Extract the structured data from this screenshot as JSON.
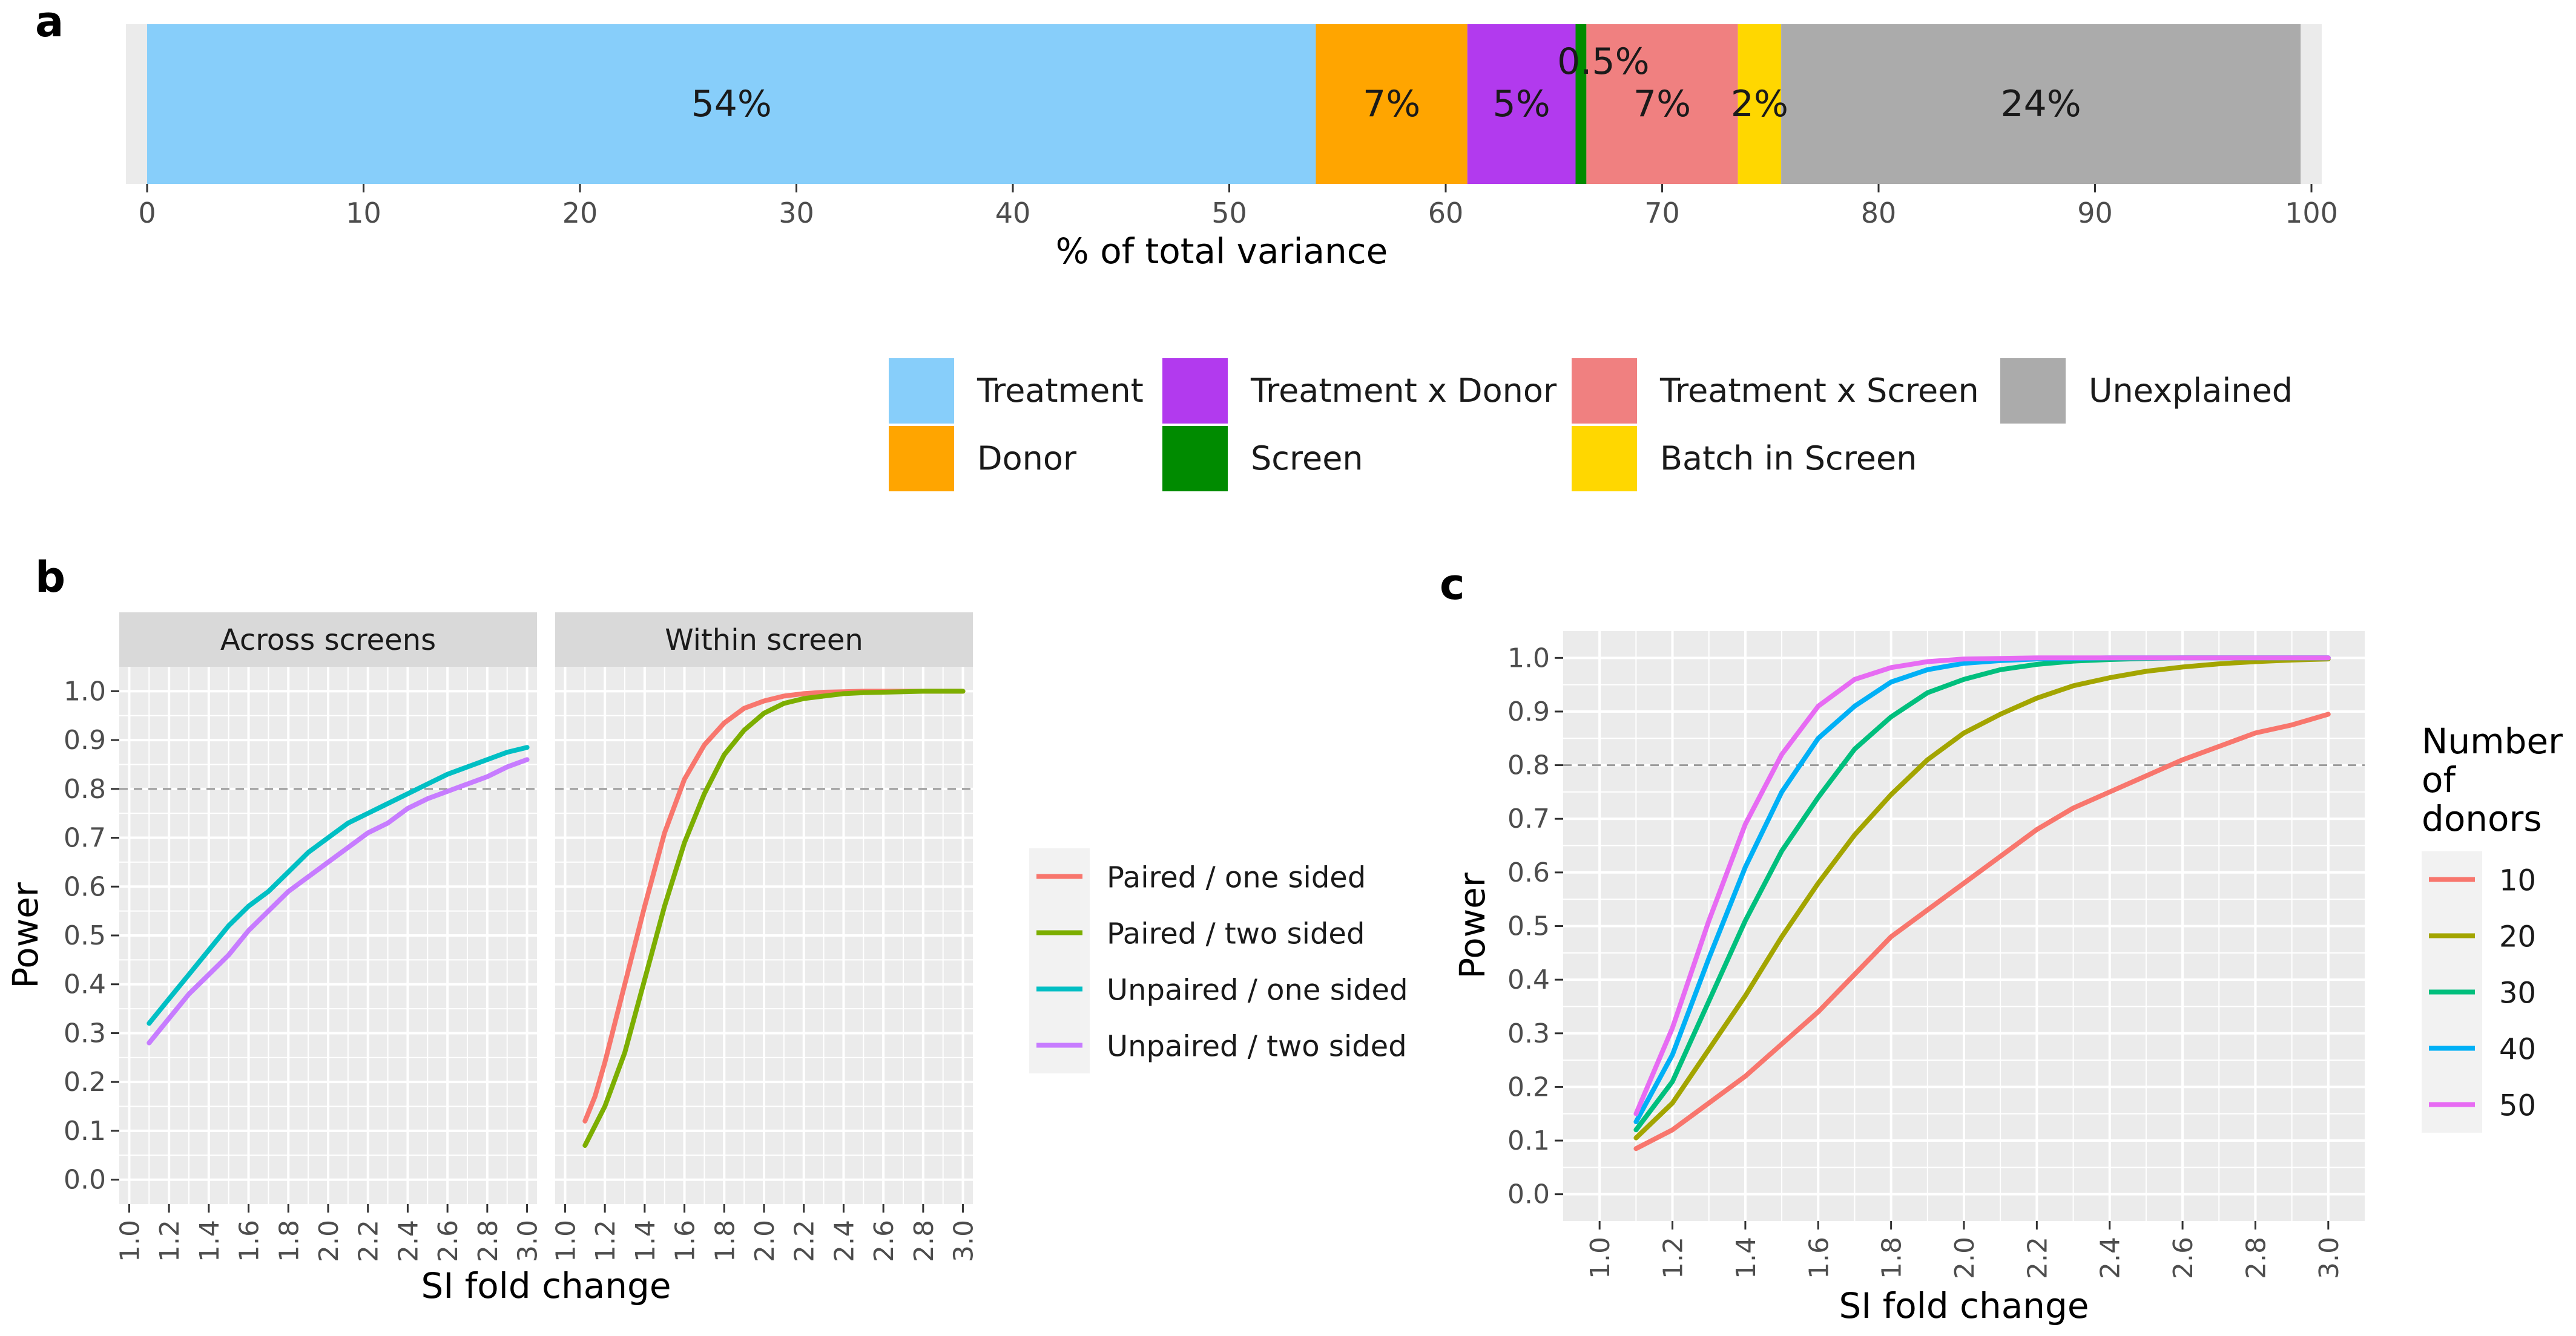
{
  "panel_labels": {
    "a": "a",
    "b": "b",
    "c": "c"
  },
  "colors": {
    "Treatment": "#87CEFA",
    "Donor": "#FFA500",
    "Treatment x Donor": "#B23AEE",
    "Screen": "#008B00",
    "Treatment x Screen": "#F08080",
    "Batch in Screen": "#FFD700",
    "Unexplained": "#ABABAB"
  },
  "chart_data": [
    {
      "id": "a",
      "type": "bar",
      "orientation": "horizontal-stacked",
      "xlabel": "% of total variance",
      "xlim": [
        0,
        100
      ],
      "xticks": [
        "0",
        "10",
        "20",
        "30",
        "40",
        "50",
        "60",
        "70",
        "80",
        "90",
        "100"
      ],
      "segments": [
        {
          "name": "Treatment",
          "value": 54,
          "label": "54%"
        },
        {
          "name": "Donor",
          "value": 7,
          "label": "7%"
        },
        {
          "name": "Treatment x Donor",
          "value": 5,
          "label": "5%"
        },
        {
          "name": "Screen",
          "value": 0.5,
          "label": "0.5%"
        },
        {
          "name": "Treatment x Screen",
          "value": 7,
          "label": "7%"
        },
        {
          "name": "Batch in Screen",
          "value": 2,
          "label": "2%"
        },
        {
          "name": "Unexplained",
          "value": 24,
          "label": "24%"
        }
      ],
      "legend": [
        [
          "Treatment",
          "Treatment x Donor",
          "Treatment x Screen",
          "Unexplained"
        ],
        [
          "Donor",
          "Screen",
          "Batch in Screen"
        ]
      ]
    },
    {
      "id": "b",
      "type": "line",
      "xlabel": "SI fold change",
      "ylabel": "Power",
      "xlim": [
        0.95,
        3.05
      ],
      "ylim": [
        -0.05,
        1.05
      ],
      "xticks": [
        "1.0",
        "1.2",
        "1.4",
        "1.6",
        "1.8",
        "2.0",
        "2.2",
        "2.4",
        "2.6",
        "2.8",
        "3.0"
      ],
      "yticks": [
        "0.0",
        "0.1",
        "0.2",
        "0.3",
        "0.4",
        "0.5",
        "0.6",
        "0.7",
        "0.8",
        "0.9",
        "1.0"
      ],
      "hline": 0.8,
      "facets": [
        {
          "title": "Across screens",
          "series": [
            {
              "name": "Unpaired / one sided",
              "color": "#00BFC4",
              "x": [
                1.1,
                1.2,
                1.3,
                1.4,
                1.5,
                1.6,
                1.7,
                1.8,
                1.9,
                2.0,
                2.1,
                2.2,
                2.3,
                2.4,
                2.5,
                2.6,
                2.7,
                2.8,
                2.9,
                3.0
              ],
              "y": [
                0.32,
                0.37,
                0.42,
                0.47,
                0.52,
                0.56,
                0.59,
                0.63,
                0.67,
                0.7,
                0.73,
                0.75,
                0.77,
                0.79,
                0.81,
                0.83,
                0.845,
                0.86,
                0.875,
                0.885
              ]
            },
            {
              "name": "Unpaired / two sided",
              "color": "#C77CFF",
              "x": [
                1.1,
                1.2,
                1.3,
                1.4,
                1.5,
                1.6,
                1.7,
                1.8,
                1.9,
                2.0,
                2.1,
                2.2,
                2.3,
                2.4,
                2.5,
                2.6,
                2.7,
                2.8,
                2.9,
                3.0
              ],
              "y": [
                0.28,
                0.33,
                0.38,
                0.42,
                0.46,
                0.51,
                0.55,
                0.59,
                0.62,
                0.65,
                0.68,
                0.71,
                0.73,
                0.76,
                0.78,
                0.795,
                0.81,
                0.825,
                0.845,
                0.86
              ]
            }
          ]
        },
        {
          "title": "Within screen",
          "series": [
            {
              "name": "Paired / one sided",
              "color": "#F8766D",
              "x": [
                1.1,
                1.15,
                1.2,
                1.3,
                1.4,
                1.5,
                1.6,
                1.7,
                1.8,
                1.9,
                2.0,
                2.1,
                2.2,
                2.3,
                2.4,
                2.5,
                2.6,
                2.7,
                2.8,
                2.9,
                3.0
              ],
              "y": [
                0.12,
                0.17,
                0.24,
                0.4,
                0.56,
                0.71,
                0.82,
                0.89,
                0.935,
                0.965,
                0.98,
                0.99,
                0.995,
                0.998,
                0.999,
                1.0,
                1.0,
                1.0,
                1.0,
                1.0,
                1.0
              ]
            },
            {
              "name": "Paired / two sided",
              "color": "#7CAE00",
              "x": [
                1.1,
                1.15,
                1.2,
                1.3,
                1.4,
                1.5,
                1.6,
                1.7,
                1.8,
                1.9,
                2.0,
                2.1,
                2.2,
                2.3,
                2.4,
                2.5,
                2.6,
                2.7,
                2.8,
                2.9,
                3.0
              ],
              "y": [
                0.07,
                0.11,
                0.15,
                0.26,
                0.41,
                0.56,
                0.69,
                0.79,
                0.87,
                0.92,
                0.955,
                0.975,
                0.985,
                0.99,
                0.995,
                0.997,
                0.998,
                0.999,
                1.0,
                1.0,
                1.0
              ]
            }
          ]
        }
      ],
      "legend": [
        "Paired / one sided",
        "Paired / two sided",
        "Unpaired / one sided",
        "Unpaired / two sided"
      ]
    },
    {
      "id": "c",
      "type": "line",
      "xlabel": "SI fold change",
      "ylabel": "Power",
      "xlim": [
        0.9,
        3.1
      ],
      "ylim": [
        -0.05,
        1.05
      ],
      "xticks": [
        "1.0",
        "1.2",
        "1.4",
        "1.6",
        "1.8",
        "2.0",
        "2.2",
        "2.4",
        "2.6",
        "2.8",
        "3.0"
      ],
      "yticks": [
        "0.0",
        "0.1",
        "0.2",
        "0.3",
        "0.4",
        "0.5",
        "0.6",
        "0.7",
        "0.8",
        "0.9",
        "1.0"
      ],
      "hline": 0.8,
      "legend_title": [
        "Number",
        "of",
        "donors"
      ],
      "series": [
        {
          "name": "10",
          "color": "#F8766D",
          "x": [
            1.1,
            1.2,
            1.3,
            1.4,
            1.5,
            1.6,
            1.7,
            1.8,
            1.9,
            2.0,
            2.1,
            2.2,
            2.3,
            2.4,
            2.5,
            2.6,
            2.7,
            2.8,
            2.9,
            3.0
          ],
          "y": [
            0.085,
            0.12,
            0.17,
            0.22,
            0.28,
            0.34,
            0.41,
            0.48,
            0.53,
            0.58,
            0.63,
            0.68,
            0.72,
            0.75,
            0.78,
            0.81,
            0.835,
            0.86,
            0.875,
            0.895
          ]
        },
        {
          "name": "20",
          "color": "#A3A500",
          "x": [
            1.1,
            1.2,
            1.3,
            1.4,
            1.5,
            1.6,
            1.7,
            1.8,
            1.9,
            2.0,
            2.1,
            2.2,
            2.3,
            2.4,
            2.5,
            2.6,
            2.7,
            2.8,
            2.9,
            3.0
          ],
          "y": [
            0.105,
            0.17,
            0.27,
            0.37,
            0.48,
            0.58,
            0.67,
            0.745,
            0.81,
            0.86,
            0.895,
            0.925,
            0.948,
            0.963,
            0.975,
            0.983,
            0.989,
            0.993,
            0.996,
            0.998
          ]
        },
        {
          "name": "30",
          "color": "#00BF7D",
          "x": [
            1.1,
            1.2,
            1.3,
            1.4,
            1.5,
            1.6,
            1.7,
            1.8,
            1.9,
            2.0,
            2.1,
            2.2,
            2.3,
            2.4,
            2.5,
            2.6,
            2.7,
            2.8,
            2.9,
            3.0
          ],
          "y": [
            0.12,
            0.21,
            0.36,
            0.51,
            0.64,
            0.74,
            0.83,
            0.89,
            0.935,
            0.96,
            0.978,
            0.988,
            0.994,
            0.997,
            0.999,
            1.0,
            1.0,
            1.0,
            1.0,
            1.0
          ]
        },
        {
          "name": "40",
          "color": "#00B0F6",
          "x": [
            1.1,
            1.2,
            1.3,
            1.4,
            1.5,
            1.6,
            1.7,
            1.8,
            1.9,
            2.0,
            2.1,
            2.2,
            2.3,
            2.4,
            2.5,
            2.6,
            2.7,
            2.8,
            2.9,
            3.0
          ],
          "y": [
            0.135,
            0.26,
            0.44,
            0.61,
            0.75,
            0.85,
            0.91,
            0.955,
            0.978,
            0.99,
            0.995,
            0.998,
            0.999,
            1.0,
            1.0,
            1.0,
            1.0,
            1.0,
            1.0,
            1.0
          ]
        },
        {
          "name": "50",
          "color": "#E76BF3",
          "x": [
            1.1,
            1.2,
            1.3,
            1.4,
            1.5,
            1.6,
            1.7,
            1.8,
            1.9,
            2.0,
            2.1,
            2.2,
            2.3,
            2.4,
            2.5,
            2.6,
            2.7,
            2.8,
            2.9,
            3.0
          ],
          "y": [
            0.15,
            0.31,
            0.51,
            0.69,
            0.82,
            0.91,
            0.96,
            0.982,
            0.993,
            0.998,
            0.999,
            1.0,
            1.0,
            1.0,
            1.0,
            1.0,
            1.0,
            1.0,
            1.0,
            1.0
          ]
        }
      ]
    }
  ]
}
